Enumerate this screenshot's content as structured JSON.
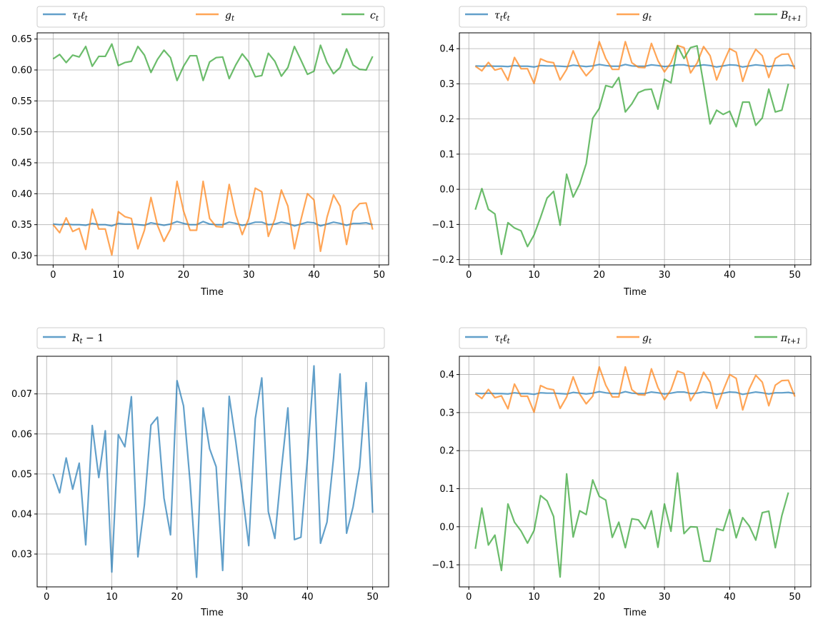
{
  "colors": {
    "blue": "#1f77b4",
    "orange": "#ff7f0e",
    "green": "#2ca02c",
    "grid": "#b0b0b0"
  },
  "chart_data": [
    {
      "type": "line",
      "xlabel": "Time",
      "xlim": [
        -2.45,
        51.45
      ],
      "ylim": [
        0.285,
        0.66
      ],
      "xticks": [
        0,
        10,
        20,
        30,
        40,
        50
      ],
      "yticks": [
        0.3,
        0.35,
        0.4,
        0.45,
        0.5,
        0.55,
        0.6,
        0.65
      ],
      "ytick_labels": [
        "0.30",
        "0.35",
        "0.40",
        "0.45",
        "0.50",
        "0.55",
        "0.60",
        "0.65"
      ],
      "grid": true,
      "legend_position": "above",
      "series": [
        {
          "name": "τtℓt",
          "color": "blue",
          "x_start": 0,
          "values": [
            0.351,
            0.35,
            0.351,
            0.35,
            0.35,
            0.349,
            0.352,
            0.35,
            0.35,
            0.348,
            0.352,
            0.351,
            0.351,
            0.35,
            0.349,
            0.353,
            0.351,
            0.349,
            0.351,
            0.355,
            0.352,
            0.35,
            0.35,
            0.355,
            0.351,
            0.35,
            0.35,
            0.354,
            0.352,
            0.349,
            0.351,
            0.354,
            0.354,
            0.35,
            0.351,
            0.354,
            0.352,
            0.348,
            0.351,
            0.354,
            0.353,
            0.348,
            0.351,
            0.354,
            0.352,
            0.349,
            0.352,
            0.352,
            0.353,
            0.35
          ]
        },
        {
          "name": "gt",
          "color": "orange",
          "x_start": 0,
          "values": [
            0.35,
            0.337,
            0.361,
            0.339,
            0.344,
            0.31,
            0.375,
            0.343,
            0.343,
            0.301,
            0.371,
            0.363,
            0.36,
            0.311,
            0.341,
            0.394,
            0.349,
            0.323,
            0.343,
            0.42,
            0.372,
            0.341,
            0.341,
            0.42,
            0.36,
            0.347,
            0.346,
            0.415,
            0.366,
            0.334,
            0.36,
            0.409,
            0.403,
            0.331,
            0.359,
            0.406,
            0.38,
            0.311,
            0.358,
            0.4,
            0.39,
            0.307,
            0.362,
            0.398,
            0.38,
            0.318,
            0.372,
            0.384,
            0.385,
            0.342
          ]
        },
        {
          "name": "ct",
          "color": "green",
          "x_start": 0,
          "values": [
            0.618,
            0.625,
            0.612,
            0.624,
            0.621,
            0.638,
            0.606,
            0.622,
            0.622,
            0.642,
            0.607,
            0.612,
            0.614,
            0.638,
            0.624,
            0.596,
            0.617,
            0.632,
            0.62,
            0.583,
            0.606,
            0.623,
            0.623,
            0.583,
            0.613,
            0.62,
            0.621,
            0.586,
            0.608,
            0.626,
            0.613,
            0.589,
            0.591,
            0.627,
            0.614,
            0.59,
            0.604,
            0.638,
            0.616,
            0.593,
            0.598,
            0.64,
            0.612,
            0.594,
            0.604,
            0.634,
            0.608,
            0.601,
            0.6,
            0.622
          ]
        }
      ]
    },
    {
      "type": "line",
      "xlabel": "Time",
      "xlim": [
        -1.45,
        52.45
      ],
      "ylim": [
        -0.215,
        0.445
      ],
      "xticks": [
        0,
        10,
        20,
        30,
        40,
        50
      ],
      "yticks": [
        -0.2,
        -0.1,
        0.0,
        0.1,
        0.2,
        0.3,
        0.4
      ],
      "ytick_labels": [
        "−0.2",
        "−0.1",
        "0.0",
        "0.1",
        "0.2",
        "0.3",
        "0.4"
      ],
      "grid": true,
      "legend_position": "above",
      "series": [
        {
          "name": "τtℓt",
          "color": "blue",
          "x_start": 1,
          "values": [
            0.351,
            0.35,
            0.351,
            0.35,
            0.35,
            0.349,
            0.352,
            0.35,
            0.35,
            0.348,
            0.352,
            0.351,
            0.351,
            0.35,
            0.349,
            0.353,
            0.351,
            0.349,
            0.351,
            0.355,
            0.352,
            0.35,
            0.35,
            0.355,
            0.351,
            0.35,
            0.35,
            0.354,
            0.352,
            0.349,
            0.351,
            0.354,
            0.354,
            0.35,
            0.351,
            0.354,
            0.352,
            0.348,
            0.351,
            0.354,
            0.353,
            0.348,
            0.351,
            0.354,
            0.352,
            0.349,
            0.352,
            0.352,
            0.353,
            0.35
          ]
        },
        {
          "name": "gt",
          "color": "orange",
          "x_start": 1,
          "values": [
            0.35,
            0.337,
            0.361,
            0.339,
            0.344,
            0.31,
            0.375,
            0.343,
            0.343,
            0.301,
            0.371,
            0.363,
            0.36,
            0.311,
            0.341,
            0.394,
            0.349,
            0.323,
            0.343,
            0.42,
            0.372,
            0.341,
            0.341,
            0.42,
            0.36,
            0.347,
            0.346,
            0.415,
            0.366,
            0.334,
            0.36,
            0.409,
            0.403,
            0.331,
            0.359,
            0.406,
            0.38,
            0.311,
            0.358,
            0.4,
            0.39,
            0.307,
            0.362,
            0.398,
            0.38,
            0.318,
            0.372,
            0.384,
            0.385,
            0.342
          ]
        },
        {
          "name": "Bt+1",
          "color": "green",
          "x_start": 1,
          "values": [
            -0.058,
            0.002,
            -0.057,
            -0.07,
            -0.185,
            -0.095,
            -0.11,
            -0.118,
            -0.163,
            -0.13,
            -0.08,
            -0.025,
            -0.006,
            -0.102,
            0.043,
            -0.022,
            0.015,
            0.073,
            0.202,
            0.23,
            0.295,
            0.29,
            0.318,
            0.22,
            0.243,
            0.275,
            0.283,
            0.285,
            0.228,
            0.313,
            0.303,
            0.408,
            0.372,
            0.403,
            0.408,
            0.3,
            0.186,
            0.225,
            0.213,
            0.222,
            0.178,
            0.248,
            0.248,
            0.182,
            0.203,
            0.285,
            0.22,
            0.225,
            0.3
          ]
        }
      ]
    },
    {
      "type": "line",
      "xlabel": "Time",
      "xlim": [
        -1.45,
        52.45
      ],
      "ylim": [
        0.0218,
        0.0794
      ],
      "xticks": [
        0,
        10,
        20,
        30,
        40,
        50
      ],
      "yticks": [
        0.03,
        0.04,
        0.05,
        0.06,
        0.07
      ],
      "ytick_labels": [
        "0.03",
        "0.04",
        "0.05",
        "0.06",
        "0.07"
      ],
      "grid": true,
      "legend_position": "above",
      "series": [
        {
          "name": "Rt − 1",
          "color": "blue",
          "x_start": 1,
          "values": [
            0.05,
            0.0453,
            0.054,
            0.0462,
            0.0527,
            0.0323,
            0.0621,
            0.0491,
            0.0608,
            0.0255,
            0.0598,
            0.0568,
            0.0693,
            0.0293,
            0.0423,
            0.0622,
            0.0642,
            0.044,
            0.0348,
            0.0733,
            0.067,
            0.048,
            0.0242,
            0.0665,
            0.0563,
            0.0518,
            0.0259,
            0.0694,
            0.0582,
            0.0455,
            0.0321,
            0.0638,
            0.074,
            0.0406,
            0.0339,
            0.051,
            0.0665,
            0.0336,
            0.0342,
            0.054,
            0.077,
            0.0327,
            0.038,
            0.054,
            0.075,
            0.0352,
            0.0418,
            0.0517,
            0.0728,
            0.0403
          ]
        }
      ]
    },
    {
      "type": "line",
      "xlabel": "Time",
      "xlim": [
        -1.45,
        52.45
      ],
      "ylim": [
        -0.158,
        0.448
      ],
      "xticks": [
        0,
        10,
        20,
        30,
        40,
        50
      ],
      "yticks": [
        -0.1,
        0.0,
        0.1,
        0.2,
        0.3,
        0.4
      ],
      "ytick_labels": [
        "−0.1",
        "0.0",
        "0.1",
        "0.2",
        "0.3",
        "0.4"
      ],
      "grid": true,
      "legend_position": "above",
      "series": [
        {
          "name": "τtℓt",
          "color": "blue",
          "x_start": 1,
          "values": [
            0.351,
            0.35,
            0.351,
            0.35,
            0.35,
            0.349,
            0.352,
            0.35,
            0.35,
            0.348,
            0.352,
            0.351,
            0.351,
            0.35,
            0.349,
            0.353,
            0.351,
            0.349,
            0.351,
            0.355,
            0.352,
            0.35,
            0.35,
            0.355,
            0.351,
            0.35,
            0.35,
            0.354,
            0.352,
            0.349,
            0.351,
            0.354,
            0.354,
            0.35,
            0.351,
            0.354,
            0.352,
            0.348,
            0.351,
            0.354,
            0.353,
            0.348,
            0.351,
            0.354,
            0.352,
            0.349,
            0.352,
            0.352,
            0.353,
            0.35
          ]
        },
        {
          "name": "gt",
          "color": "orange",
          "x_start": 1,
          "values": [
            0.35,
            0.337,
            0.361,
            0.339,
            0.344,
            0.31,
            0.375,
            0.343,
            0.343,
            0.301,
            0.371,
            0.363,
            0.36,
            0.311,
            0.341,
            0.394,
            0.349,
            0.323,
            0.343,
            0.42,
            0.372,
            0.341,
            0.341,
            0.42,
            0.36,
            0.347,
            0.346,
            0.415,
            0.366,
            0.334,
            0.36,
            0.409,
            0.403,
            0.331,
            0.359,
            0.406,
            0.38,
            0.311,
            0.358,
            0.4,
            0.39,
            0.307,
            0.362,
            0.398,
            0.38,
            0.318,
            0.372,
            0.384,
            0.385,
            0.342
          ]
        },
        {
          "name": "πt+1",
          "color": "green",
          "x_start": 1,
          "values": [
            -0.058,
            0.049,
            -0.048,
            -0.022,
            -0.115,
            0.06,
            0.012,
            -0.011,
            -0.043,
            -0.01,
            0.082,
            0.068,
            0.027,
            -0.132,
            0.139,
            -0.027,
            0.042,
            0.032,
            0.123,
            0.08,
            0.07,
            -0.028,
            0.012,
            -0.055,
            0.021,
            0.018,
            -0.005,
            0.042,
            -0.054,
            0.06,
            -0.012,
            0.141,
            -0.018,
            0.0,
            -0.001,
            -0.09,
            -0.091,
            -0.005,
            -0.01,
            0.045,
            -0.029,
            0.024,
            0.002,
            -0.035,
            0.037,
            0.041,
            -0.055,
            0.029,
            0.09
          ]
        }
      ]
    }
  ]
}
